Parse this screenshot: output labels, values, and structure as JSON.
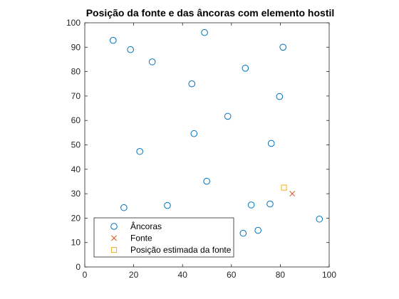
{
  "chart_data": {
    "type": "scatter",
    "title": "Posição da fonte e das âncoras com elemento hostil",
    "xlabel": "",
    "ylabel": "",
    "xlim": [
      0,
      100
    ],
    "ylim": [
      0,
      100
    ],
    "xticks": [
      0,
      20,
      40,
      60,
      80,
      100
    ],
    "yticks": [
      0,
      10,
      20,
      30,
      40,
      50,
      60,
      70,
      80,
      90,
      100
    ],
    "grid": false,
    "legend_position": "bottom-left",
    "series": [
      {
        "name": "Âncoras",
        "marker": "circle",
        "color": "#0072BD",
        "points": [
          [
            11.6,
            92.8
          ],
          [
            18.7,
            89.0
          ],
          [
            27.6,
            84.0
          ],
          [
            49.0,
            96.0
          ],
          [
            81.1,
            90.0
          ],
          [
            65.7,
            81.4
          ],
          [
            43.8,
            75.0
          ],
          [
            79.7,
            69.8
          ],
          [
            58.5,
            61.7
          ],
          [
            44.7,
            54.6
          ],
          [
            22.5,
            47.3
          ],
          [
            76.3,
            50.6
          ],
          [
            49.9,
            35.1
          ],
          [
            16.0,
            24.3
          ],
          [
            33.8,
            25.2
          ],
          [
            68.1,
            25.4
          ],
          [
            75.8,
            25.8
          ],
          [
            64.8,
            13.8
          ],
          [
            70.9,
            15.0
          ],
          [
            96.0,
            19.6
          ]
        ]
      },
      {
        "name": "Fonte",
        "marker": "x",
        "color": "#D95319",
        "points": [
          [
            84.9,
            30.0
          ]
        ]
      },
      {
        "name": "Posição estimada da fonte",
        "marker": "square",
        "color": "#EDB120",
        "points": [
          [
            81.5,
            32.5
          ]
        ]
      }
    ]
  }
}
